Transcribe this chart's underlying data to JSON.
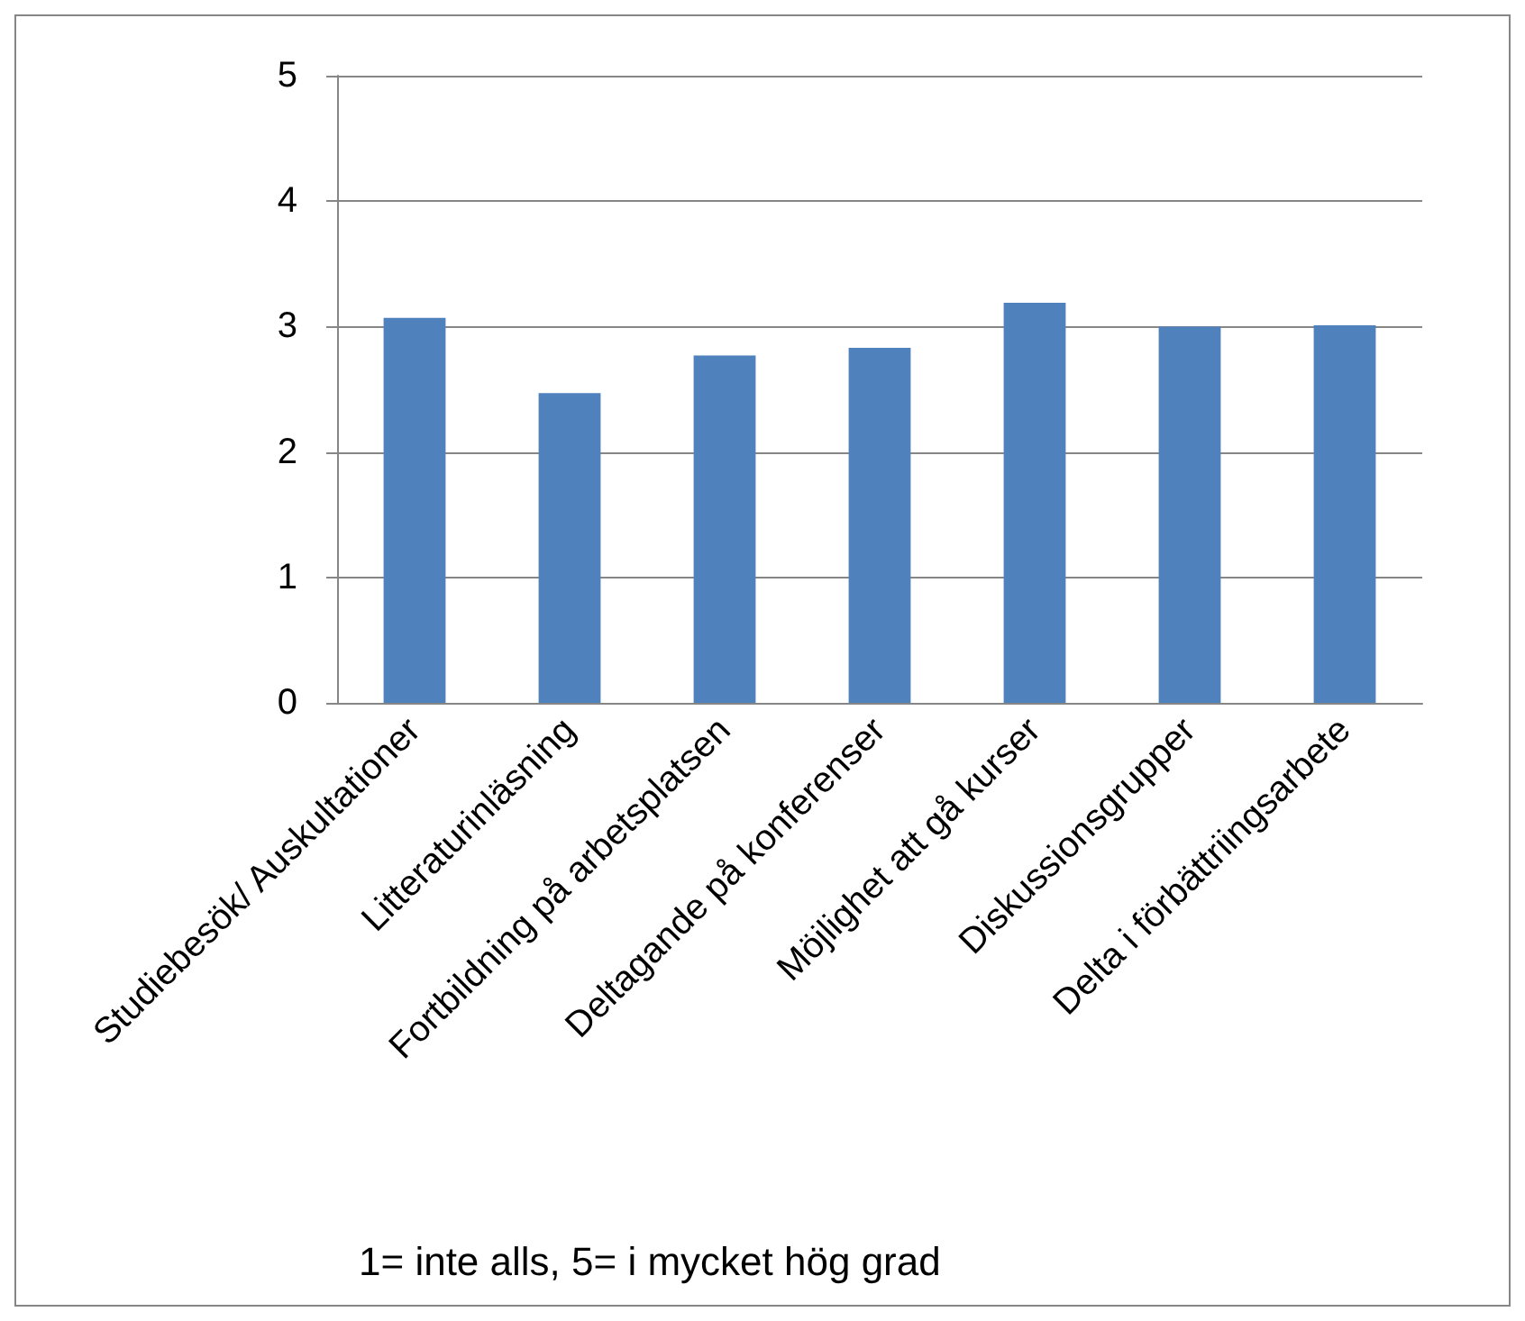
{
  "chart_data": {
    "type": "bar",
    "categories": [
      "Studiebesök/ Auskultationer",
      "Litteraturinläsning",
      "Fortbildning på arbetsplatsen",
      "Deltagande på konferenser",
      "Möjlighet att gå kurser",
      "Diskussionsgrupper",
      "Delta i förbättriingsarbete"
    ],
    "values": [
      3.07,
      2.47,
      2.77,
      2.83,
      3.19,
      3.0,
      3.01
    ],
    "color": "#4f81bd",
    "ylim": [
      0,
      5
    ],
    "yticks": [
      0,
      1,
      2,
      3,
      4,
      5
    ],
    "grid": "y",
    "annotations": [
      "1= inte alls, 5= i mycket hög grad"
    ]
  }
}
